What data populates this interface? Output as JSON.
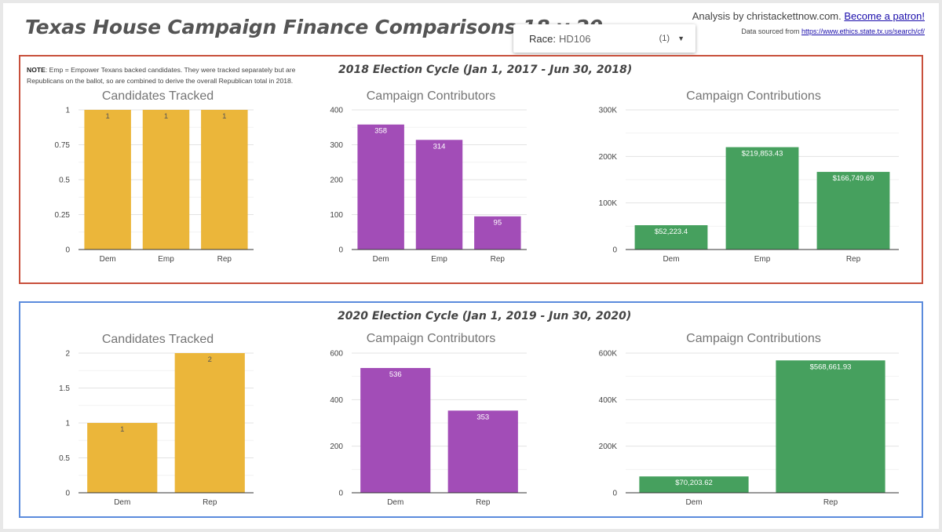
{
  "header": {
    "title": "Texas House Campaign Finance Comparisons 18 v 20",
    "race_label": "Race:",
    "race_value": "HD106",
    "race_count": "(1)",
    "credit_text": "Analysis by christackettnow.com.",
    "credit_link": "Become a patron!",
    "source_text": "Data sourced from",
    "source_link": "https://www.ethics.state.tx.us/search/cf/"
  },
  "sections": {
    "cycle2018": {
      "title": "2018 Election Cycle (Jan 1, 2017 - Jun 30, 2018)",
      "note_bold": "NOTE",
      "note_text": ": Emp = Empower Texans backed candidates. They were tracked separately but are Republicans on the ballot, so are combined to derive the overall Republican total in 2018."
    },
    "cycle2020": {
      "title": "2020 Election Cycle (Jan 1, 2019 - Jun 30, 2020)"
    }
  },
  "colors": {
    "candidates": "#ebb63a",
    "contributors": "#a24db7",
    "contributions": "#46a05e",
    "box2018": "#c8503c",
    "box2020": "#5b8bdc"
  },
  "chart_data": [
    {
      "id": "c18_candidates",
      "type": "bar",
      "title": "Candidates Tracked",
      "categories": [
        "Dem",
        "Emp",
        "Rep"
      ],
      "values": [
        1,
        1,
        1
      ],
      "value_labels": [
        "1",
        "1",
        "1"
      ],
      "yticks": [
        0,
        0.25,
        0.5,
        0.75,
        1
      ],
      "ytick_labels": [
        "0",
        "0.25",
        "0.5",
        "0.75",
        "1"
      ],
      "ylim": [
        0,
        1
      ],
      "color": "#ebb63a",
      "label_color": "#555555"
    },
    {
      "id": "c18_contributors",
      "type": "bar",
      "title": "Campaign Contributors",
      "categories": [
        "Dem",
        "Emp",
        "Rep"
      ],
      "values": [
        358,
        314,
        95
      ],
      "value_labels": [
        "358",
        "314",
        "95"
      ],
      "yticks": [
        0,
        100,
        200,
        300,
        400
      ],
      "ytick_labels": [
        "0",
        "100",
        "200",
        "300",
        "400"
      ],
      "ylim": [
        0,
        400
      ],
      "color": "#a24db7",
      "label_color": "#ffffff"
    },
    {
      "id": "c18_contributions",
      "type": "bar",
      "title": "Campaign Contributions",
      "categories": [
        "Dem",
        "Emp",
        "Rep"
      ],
      "values": [
        52223.4,
        219853.43,
        166749.69
      ],
      "value_labels": [
        "$52,223.4",
        "$219,853.43",
        "$166,749.69"
      ],
      "yticks": [
        0,
        100000,
        200000,
        300000
      ],
      "ytick_labels": [
        "0",
        "100K",
        "200K",
        "300K"
      ],
      "ylim": [
        0,
        300000
      ],
      "color": "#46a05e",
      "label_color": "#ffffff"
    },
    {
      "id": "c20_candidates",
      "type": "bar",
      "title": "Candidates Tracked",
      "categories": [
        "Dem",
        "Rep"
      ],
      "values": [
        1,
        2
      ],
      "value_labels": [
        "1",
        "2"
      ],
      "yticks": [
        0,
        0.5,
        1,
        1.5,
        2
      ],
      "ytick_labels": [
        "0",
        "0.5",
        "1",
        "1.5",
        "2"
      ],
      "ylim": [
        0,
        2
      ],
      "color": "#ebb63a",
      "label_color": "#555555"
    },
    {
      "id": "c20_contributors",
      "type": "bar",
      "title": "Campaign Contributors",
      "categories": [
        "Dem",
        "Rep"
      ],
      "values": [
        536,
        353
      ],
      "value_labels": [
        "536",
        "353"
      ],
      "yticks": [
        0,
        200,
        400,
        600
      ],
      "ytick_labels": [
        "0",
        "200",
        "400",
        "600"
      ],
      "ylim": [
        0,
        600
      ],
      "color": "#a24db7",
      "label_color": "#ffffff"
    },
    {
      "id": "c20_contributions",
      "type": "bar",
      "title": "Campaign Contributions",
      "categories": [
        "Dem",
        "Rep"
      ],
      "values": [
        70203.62,
        568661.93
      ],
      "value_labels": [
        "$70,203.62",
        "$568,661.93"
      ],
      "yticks": [
        0,
        200000,
        400000,
        600000
      ],
      "ytick_labels": [
        "0",
        "200K",
        "400K",
        "600K"
      ],
      "ylim": [
        0,
        600000
      ],
      "color": "#46a05e",
      "label_color": "#ffffff"
    }
  ]
}
